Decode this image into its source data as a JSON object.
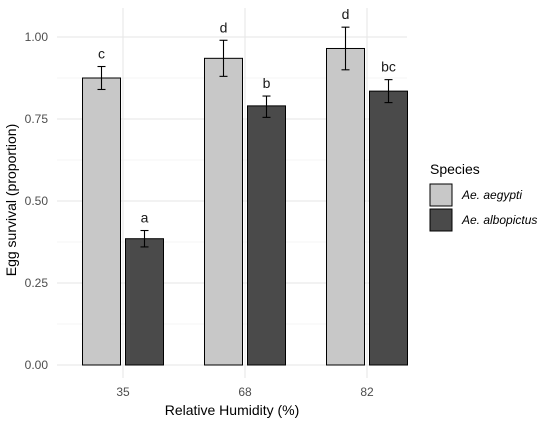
{
  "chart_data": {
    "type": "bar",
    "categories": [
      "35",
      "68",
      "82"
    ],
    "xlabel": "Relative Humidity (%)",
    "ylabel": "Egg survival (proportion)",
    "ylim": [
      0,
      1.05
    ],
    "yticks": [
      "0.00",
      "0.25",
      "0.50",
      "0.75",
      "1.00"
    ],
    "ytick_values": [
      0,
      0.25,
      0.5,
      0.75,
      1.0
    ],
    "grid": true,
    "legend": {
      "title": "Species",
      "placement": "right"
    },
    "series": [
      {
        "name": "Ae. aegypti",
        "color": "#c8c8c8",
        "values": [
          0.875,
          0.935,
          0.965
        ],
        "error_low": [
          0.84,
          0.88,
          0.9
        ],
        "error_high": [
          0.91,
          0.99,
          1.03
        ],
        "letters": [
          "c",
          "d",
          "d"
        ]
      },
      {
        "name": "Ae. albopictus",
        "color": "#4a4a4a",
        "values": [
          0.385,
          0.79,
          0.835
        ],
        "error_low": [
          0.36,
          0.755,
          0.8
        ],
        "error_high": [
          0.41,
          0.82,
          0.87
        ],
        "letters": [
          "a",
          "b",
          "bc"
        ]
      }
    ]
  }
}
